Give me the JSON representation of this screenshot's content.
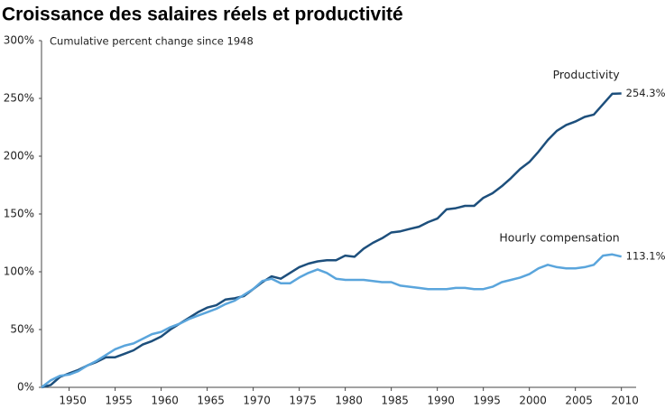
{
  "chart_data": {
    "type": "line",
    "title": "Croissance des salaires réels et productivité",
    "subtitle": "Cumulative percent change since 1948",
    "x": [
      1947,
      1948,
      1949,
      1950,
      1951,
      1952,
      1953,
      1954,
      1955,
      1956,
      1957,
      1958,
      1959,
      1960,
      1961,
      1962,
      1963,
      1964,
      1965,
      1966,
      1967,
      1968,
      1969,
      1970,
      1971,
      1972,
      1973,
      1974,
      1975,
      1976,
      1977,
      1978,
      1979,
      1980,
      1981,
      1982,
      1983,
      1984,
      1985,
      1986,
      1987,
      1988,
      1989,
      1990,
      1991,
      1992,
      1993,
      1994,
      1995,
      1996,
      1997,
      1998,
      1999,
      2000,
      2001,
      2002,
      2003,
      2004,
      2005,
      2006,
      2007,
      2008,
      2009,
      2010
    ],
    "series": [
      {
        "name": "Productivity",
        "color": "#1d4f7c",
        "end_label": "254.3%",
        "values": [
          0,
          2,
          9,
          12,
          15,
          19,
          22,
          26,
          26,
          29,
          32,
          37,
          40,
          44,
          50,
          55,
          60,
          65,
          69,
          71,
          76,
          77,
          79,
          85,
          91,
          96,
          94,
          99,
          104,
          107,
          109,
          110,
          110,
          114,
          113,
          120,
          125,
          129,
          134,
          135,
          137,
          139,
          143,
          146,
          154,
          155,
          157,
          157,
          164,
          168,
          174,
          181,
          189,
          195,
          204,
          214,
          222,
          227,
          230,
          234,
          236,
          245,
          254,
          254.3
        ]
      },
      {
        "name": "Hourly compensation",
        "color": "#5aa5dc",
        "end_label": "113.1%",
        "values": [
          0,
          6,
          10,
          11,
          14,
          19,
          23,
          28,
          33,
          36,
          38,
          42,
          46,
          48,
          52,
          55,
          59,
          62,
          65,
          68,
          72,
          75,
          80,
          85,
          92,
          94,
          90,
          90,
          95,
          99,
          102,
          99,
          94,
          93,
          93,
          93,
          92,
          91,
          91,
          88,
          87,
          86,
          85,
          85,
          85,
          86,
          86,
          85,
          85,
          87,
          91,
          93,
          95,
          98,
          103,
          106,
          104,
          103,
          103,
          104,
          106,
          114,
          115,
          113.1
        ]
      }
    ],
    "xlim": [
      1947,
      2011.6
    ],
    "xticks": [
      1950,
      1955,
      1960,
      1965,
      1970,
      1975,
      1980,
      1985,
      1990,
      1995,
      2000,
      2005,
      2010
    ],
    "ylim": [
      0,
      300
    ],
    "yticks": [
      {
        "value": 0,
        "label": "0%"
      },
      {
        "value": 50,
        "label": "50%"
      },
      {
        "value": 100,
        "label": "100%"
      },
      {
        "value": 150,
        "label": "150%"
      },
      {
        "value": 200,
        "label": "200%"
      },
      {
        "value": 250,
        "label": "250%"
      },
      {
        "value": 300,
        "label": "300%"
      }
    ],
    "grid": false
  }
}
